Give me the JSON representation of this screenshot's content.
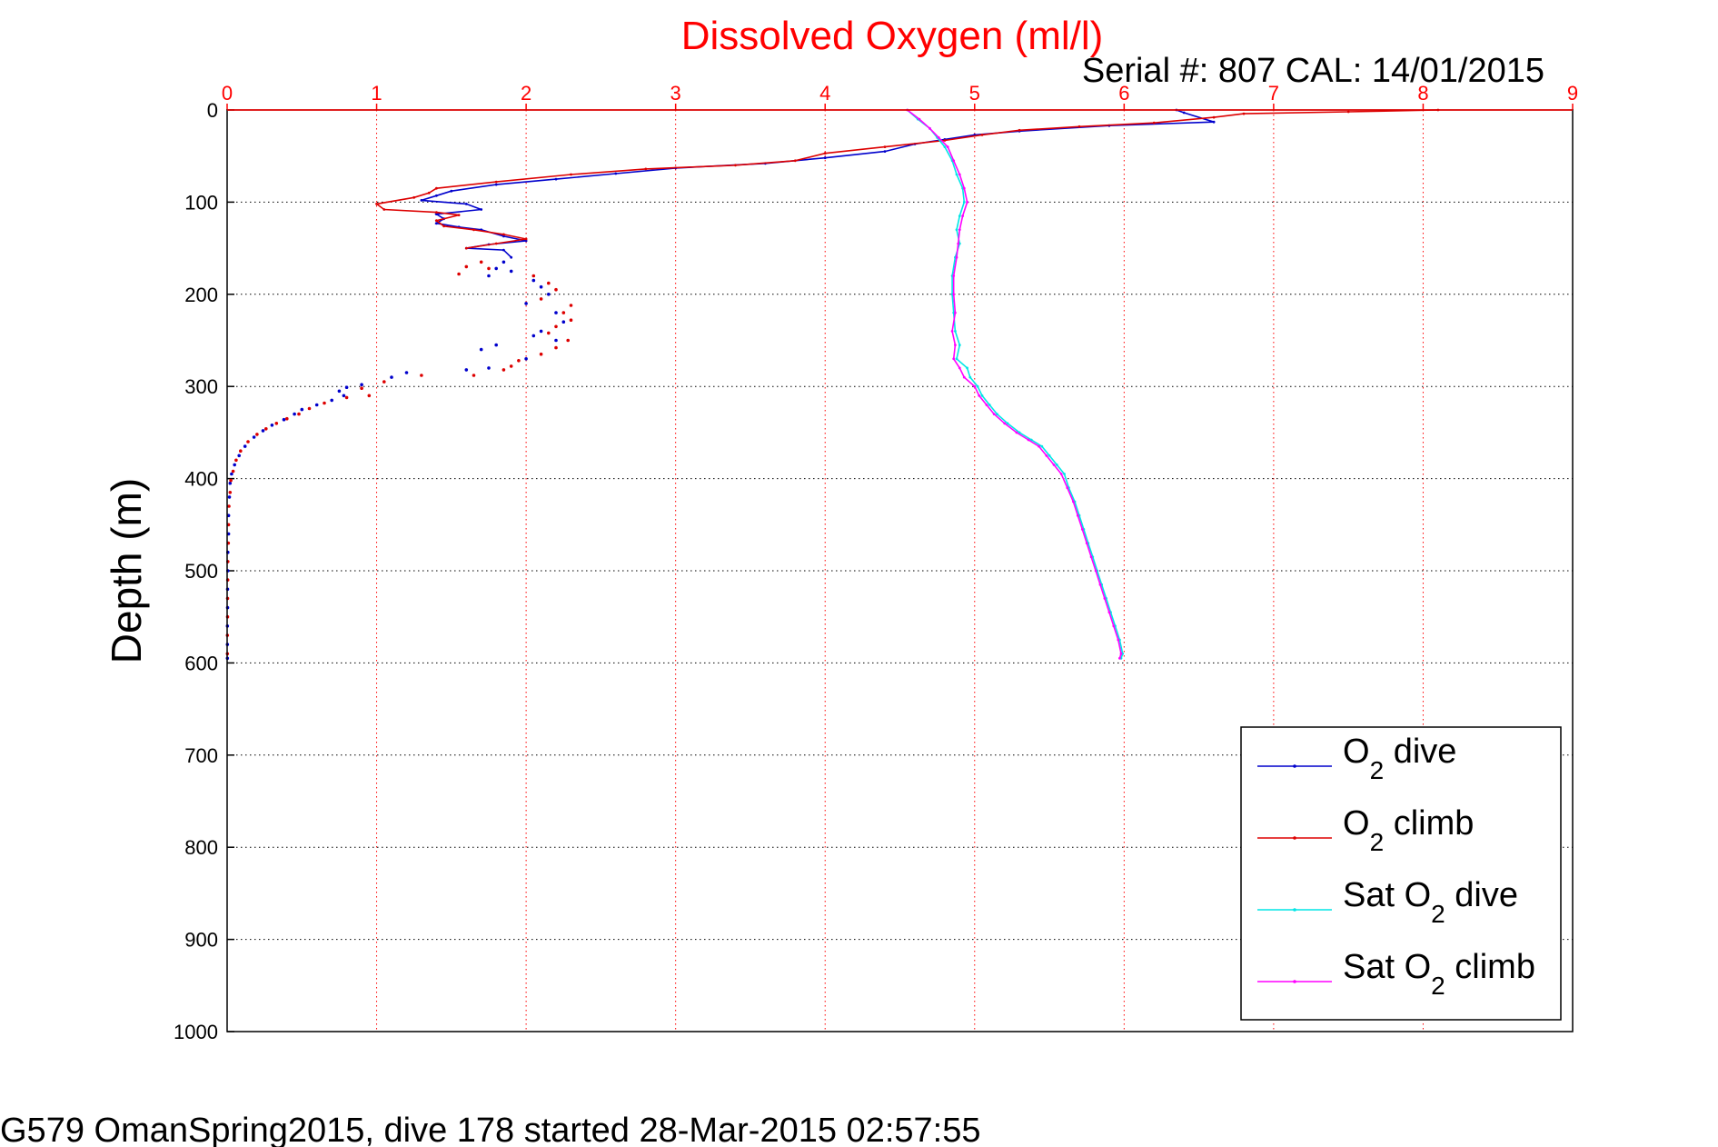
{
  "chart_data": {
    "type": "line",
    "title": "Dissolved Oxygen (ml/l)",
    "subtitle": "Serial #: 807  CAL: 14/01/2015",
    "footer": "G579 OmanSpring2015, dive 178 started 28-Mar-2015 02:57:55",
    "xlabel": "",
    "ylabel": "Depth (m)",
    "xlim": [
      0,
      9
    ],
    "ylim": [
      0,
      1000
    ],
    "y_reversed": true,
    "x_axis_position": "top",
    "grid": true,
    "x_ticks": [
      "0",
      "1",
      "2",
      "3",
      "4",
      "5",
      "6",
      "7",
      "8",
      "9"
    ],
    "y_ticks": [
      "0",
      "100",
      "200",
      "300",
      "400",
      "500",
      "600",
      "700",
      "800",
      "900",
      "1000"
    ],
    "legend_position": "bottom-right",
    "colors": {
      "title": "#ff0000",
      "x_tick": "#ff0000",
      "y_tick": "#000000",
      "grid_x": "#ff0000",
      "grid_y": "#000000",
      "o2_dive": "#0000cc",
      "o2_climb": "#dd0000",
      "sat_dive": "#00e6e6",
      "sat_climb": "#ff00ff"
    },
    "legend": [
      {
        "base": "O",
        "sub": "2",
        "suffix": " dive",
        "color": "#0000cc"
      },
      {
        "base": "O",
        "sub": "2",
        "suffix": " climb",
        "color": "#dd0000"
      },
      {
        "base": "Sat O",
        "sub": "2",
        "suffix": " dive",
        "color": "#00e6e6"
      },
      {
        "base": "Sat O",
        "sub": "2",
        "suffix": " climb",
        "color": "#ff00ff"
      }
    ],
    "series": [
      {
        "name": "O2 dive",
        "color": "#0000cc",
        "style": "line",
        "points": [
          [
            6.35,
            0
          ],
          [
            6.4,
            3
          ],
          [
            6.6,
            13
          ],
          [
            5.9,
            17
          ],
          [
            5.3,
            23
          ],
          [
            5.0,
            27
          ],
          [
            4.8,
            32
          ],
          [
            4.6,
            37
          ],
          [
            4.4,
            45
          ],
          [
            4.0,
            52
          ],
          [
            3.6,
            58
          ],
          [
            3.0,
            63
          ],
          [
            2.6,
            69
          ],
          [
            2.2,
            75
          ],
          [
            1.8,
            81
          ],
          [
            1.5,
            88
          ],
          [
            1.4,
            93
          ],
          [
            1.3,
            98
          ],
          [
            1.6,
            102
          ],
          [
            1.7,
            108
          ],
          [
            1.4,
            113
          ],
          [
            1.45,
            118
          ],
          [
            1.4,
            123
          ],
          [
            1.55,
            127
          ],
          [
            1.7,
            130
          ],
          [
            1.85,
            137
          ],
          [
            2.0,
            142
          ],
          [
            1.75,
            146
          ],
          [
            1.6,
            150
          ],
          [
            1.85,
            152
          ],
          [
            1.9,
            160
          ]
        ]
      },
      {
        "name": "O2 climb",
        "color": "#dd0000",
        "style": "line",
        "points": [
          [
            8.1,
            0
          ],
          [
            7.5,
            2
          ],
          [
            6.8,
            4
          ],
          [
            6.6,
            8
          ],
          [
            6.2,
            14
          ],
          [
            5.7,
            18
          ],
          [
            5.3,
            22
          ],
          [
            5.05,
            27
          ],
          [
            4.8,
            33
          ],
          [
            4.4,
            40
          ],
          [
            4.0,
            47
          ],
          [
            3.8,
            55
          ],
          [
            3.4,
            60
          ],
          [
            2.8,
            64
          ],
          [
            2.3,
            70
          ],
          [
            1.8,
            78
          ],
          [
            1.4,
            85
          ],
          [
            1.35,
            90
          ],
          [
            1.25,
            95
          ],
          [
            1.0,
            102
          ],
          [
            1.05,
            108
          ],
          [
            1.4,
            111
          ],
          [
            1.55,
            114
          ],
          [
            1.4,
            120
          ],
          [
            1.45,
            126
          ],
          [
            1.65,
            130
          ],
          [
            1.85,
            135
          ],
          [
            2.0,
            140
          ],
          [
            1.8,
            145
          ],
          [
            1.6,
            150
          ]
        ]
      },
      {
        "name": "O2 dive scatter",
        "color": "#0000cc",
        "style": "dots",
        "points": [
          [
            1.85,
            165
          ],
          [
            1.8,
            172
          ],
          [
            1.75,
            180
          ],
          [
            1.9,
            175
          ],
          [
            2.05,
            185
          ],
          [
            2.1,
            192
          ],
          [
            2.15,
            200
          ],
          [
            2.0,
            210
          ],
          [
            2.2,
            220
          ],
          [
            2.25,
            230
          ],
          [
            2.1,
            240
          ],
          [
            2.05,
            245
          ],
          [
            2.2,
            250
          ],
          [
            1.8,
            255
          ],
          [
            1.7,
            260
          ],
          [
            2.0,
            270
          ],
          [
            1.75,
            280
          ],
          [
            1.6,
            282
          ],
          [
            1.2,
            285
          ],
          [
            1.1,
            290
          ],
          [
            0.9,
            298
          ],
          [
            0.8,
            301
          ],
          [
            0.75,
            305
          ],
          [
            0.78,
            310
          ],
          [
            0.7,
            315
          ],
          [
            0.6,
            320
          ],
          [
            0.5,
            325
          ],
          [
            0.45,
            330
          ],
          [
            0.38,
            336
          ],
          [
            0.3,
            342
          ],
          [
            0.24,
            348
          ],
          [
            0.18,
            355
          ],
          [
            0.12,
            365
          ],
          [
            0.08,
            375
          ],
          [
            0.05,
            385
          ],
          [
            0.03,
            395
          ],
          [
            0.02,
            405
          ],
          [
            0.015,
            420
          ],
          [
            0.01,
            440
          ],
          [
            0.01,
            460
          ],
          [
            0.005,
            480
          ],
          [
            0.005,
            500
          ],
          [
            0.003,
            520
          ],
          [
            0.003,
            540
          ],
          [
            0.002,
            560
          ],
          [
            0.002,
            580
          ],
          [
            0.002,
            595
          ]
        ]
      },
      {
        "name": "O2 climb scatter",
        "color": "#dd0000",
        "style": "dots",
        "points": [
          [
            1.7,
            165
          ],
          [
            1.6,
            170
          ],
          [
            1.55,
            178
          ],
          [
            1.75,
            172
          ],
          [
            2.05,
            180
          ],
          [
            2.15,
            188
          ],
          [
            2.2,
            195
          ],
          [
            2.1,
            205
          ],
          [
            2.3,
            212
          ],
          [
            2.25,
            220
          ],
          [
            2.3,
            228
          ],
          [
            2.2,
            235
          ],
          [
            2.15,
            242
          ],
          [
            2.28,
            250
          ],
          [
            2.2,
            258
          ],
          [
            2.1,
            265
          ],
          [
            1.95,
            272
          ],
          [
            1.9,
            278
          ],
          [
            1.85,
            282
          ],
          [
            1.65,
            288
          ],
          [
            1.3,
            288
          ],
          [
            1.05,
            295
          ],
          [
            0.9,
            302
          ],
          [
            0.95,
            310
          ],
          [
            0.8,
            312
          ],
          [
            0.65,
            318
          ],
          [
            0.55,
            324
          ],
          [
            0.48,
            330
          ],
          [
            0.4,
            335
          ],
          [
            0.33,
            340
          ],
          [
            0.26,
            346
          ],
          [
            0.2,
            352
          ],
          [
            0.14,
            360
          ],
          [
            0.09,
            370
          ],
          [
            0.06,
            380
          ],
          [
            0.04,
            392
          ],
          [
            0.025,
            402
          ],
          [
            0.02,
            415
          ],
          [
            0.012,
            430
          ],
          [
            0.01,
            450
          ],
          [
            0.008,
            470
          ],
          [
            0.005,
            490
          ],
          [
            0.004,
            510
          ],
          [
            0.003,
            530
          ],
          [
            0.003,
            550
          ],
          [
            0.002,
            570
          ],
          [
            0.002,
            590
          ]
        ]
      },
      {
        "name": "Sat O2 dive",
        "color": "#00e6e6",
        "style": "line",
        "points": [
          [
            4.55,
            0
          ],
          [
            4.62,
            10
          ],
          [
            4.7,
            20
          ],
          [
            4.75,
            30
          ],
          [
            4.8,
            40
          ],
          [
            4.85,
            55
          ],
          [
            4.88,
            70
          ],
          [
            4.92,
            85
          ],
          [
            4.93,
            100
          ],
          [
            4.9,
            115
          ],
          [
            4.88,
            130
          ],
          [
            4.9,
            145
          ],
          [
            4.87,
            160
          ],
          [
            4.85,
            180
          ],
          [
            4.85,
            200
          ],
          [
            4.86,
            220
          ],
          [
            4.87,
            240
          ],
          [
            4.9,
            255
          ],
          [
            4.88,
            270
          ],
          [
            4.95,
            280
          ],
          [
            4.97,
            290
          ],
          [
            5.02,
            300
          ],
          [
            5.05,
            310
          ],
          [
            5.1,
            320
          ],
          [
            5.15,
            330
          ],
          [
            5.22,
            340
          ],
          [
            5.3,
            350
          ],
          [
            5.38,
            358
          ],
          [
            5.45,
            365
          ],
          [
            5.5,
            375
          ],
          [
            5.55,
            385
          ],
          [
            5.6,
            395
          ],
          [
            5.63,
            410
          ],
          [
            5.67,
            425
          ],
          [
            5.7,
            440
          ],
          [
            5.73,
            455
          ],
          [
            5.76,
            470
          ],
          [
            5.79,
            485
          ],
          [
            5.82,
            500
          ],
          [
            5.85,
            515
          ],
          [
            5.88,
            530
          ],
          [
            5.91,
            545
          ],
          [
            5.94,
            560
          ],
          [
            5.97,
            575
          ],
          [
            5.99,
            590
          ],
          [
            5.98,
            595
          ]
        ]
      },
      {
        "name": "Sat O2 climb",
        "color": "#ff00ff",
        "style": "line",
        "points": [
          [
            4.55,
            0
          ],
          [
            4.63,
            10
          ],
          [
            4.7,
            20
          ],
          [
            4.76,
            30
          ],
          [
            4.82,
            40
          ],
          [
            4.86,
            55
          ],
          [
            4.9,
            70
          ],
          [
            4.93,
            85
          ],
          [
            4.95,
            100
          ],
          [
            4.92,
            115
          ],
          [
            4.9,
            130
          ],
          [
            4.89,
            145
          ],
          [
            4.88,
            160
          ],
          [
            4.86,
            180
          ],
          [
            4.86,
            200
          ],
          [
            4.87,
            220
          ],
          [
            4.85,
            240
          ],
          [
            4.87,
            255
          ],
          [
            4.86,
            270
          ],
          [
            4.9,
            280
          ],
          [
            4.93,
            290
          ],
          [
            5.0,
            300
          ],
          [
            5.03,
            310
          ],
          [
            5.08,
            320
          ],
          [
            5.13,
            330
          ],
          [
            5.2,
            340
          ],
          [
            5.28,
            350
          ],
          [
            5.36,
            358
          ],
          [
            5.43,
            365
          ],
          [
            5.48,
            375
          ],
          [
            5.53,
            385
          ],
          [
            5.58,
            395
          ],
          [
            5.62,
            410
          ],
          [
            5.66,
            425
          ],
          [
            5.69,
            440
          ],
          [
            5.72,
            455
          ],
          [
            5.75,
            470
          ],
          [
            5.78,
            485
          ],
          [
            5.81,
            500
          ],
          [
            5.84,
            515
          ],
          [
            5.87,
            530
          ],
          [
            5.9,
            545
          ],
          [
            5.93,
            560
          ],
          [
            5.96,
            575
          ],
          [
            5.98,
            590
          ],
          [
            5.97,
            595
          ]
        ]
      }
    ]
  }
}
